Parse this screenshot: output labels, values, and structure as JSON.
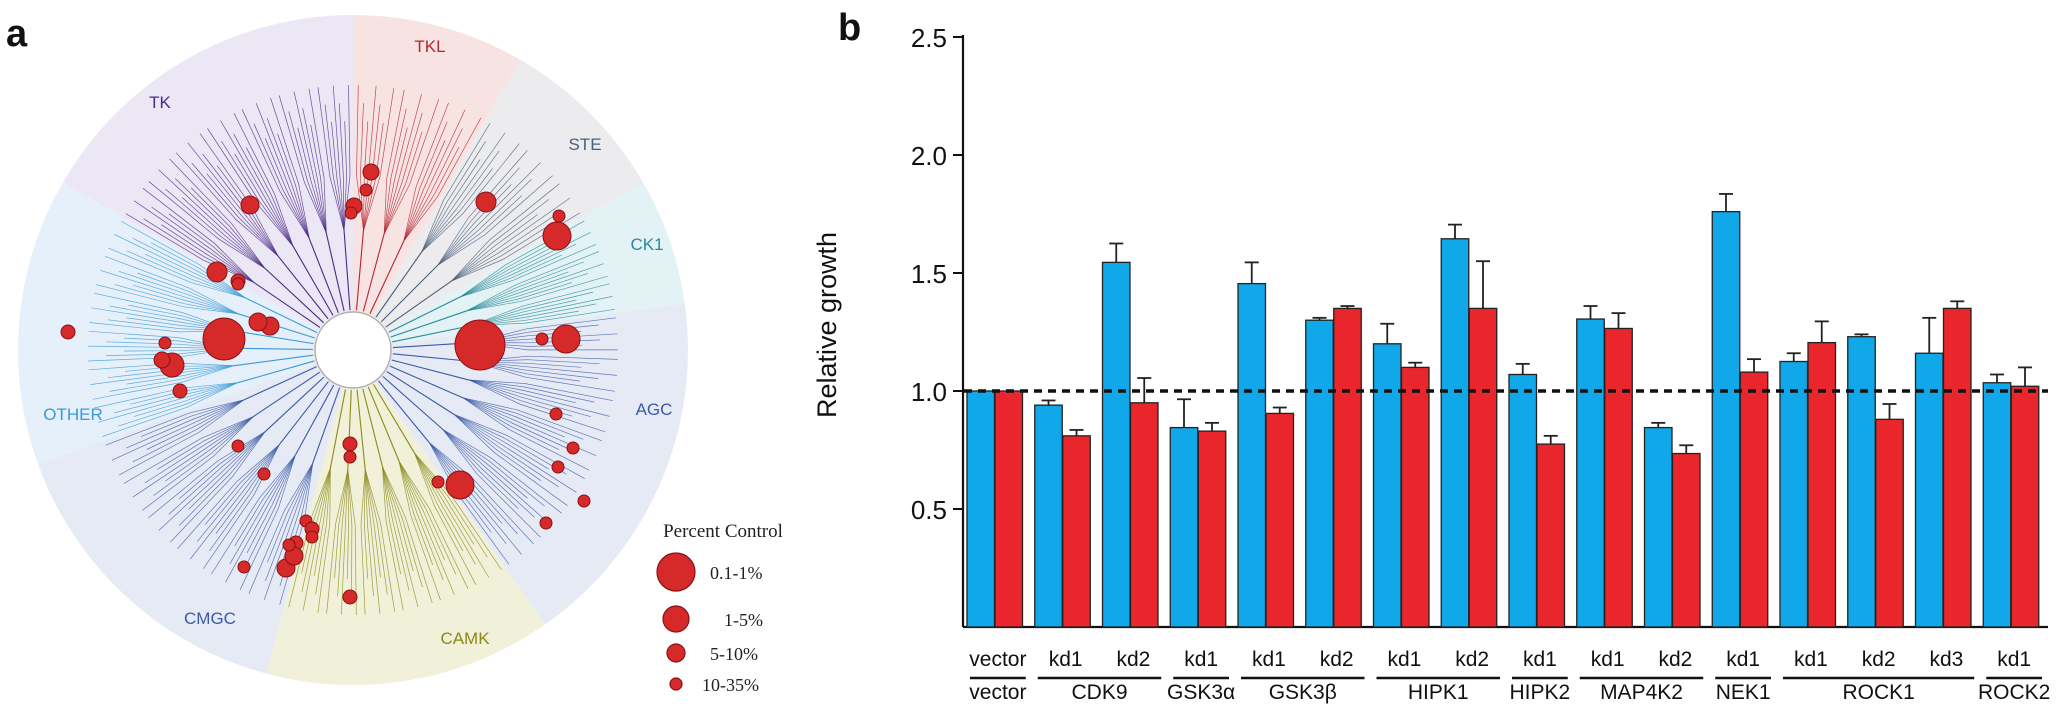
{
  "panel_a": {
    "panel_letter": "a",
    "groups": [
      {
        "name": "TKL",
        "color": "#b2262f"
      },
      {
        "name": "STE",
        "color": "#4a5f7a"
      },
      {
        "name": "CK1",
        "color": "#2a8a98"
      },
      {
        "name": "AGC",
        "color": "#3b5aa8"
      },
      {
        "name": "CAMK",
        "color": "#8a8a1a"
      },
      {
        "name": "CMGC",
        "color": "#3b5aa8"
      },
      {
        "name": "OTHER",
        "color": "#3a9ad8"
      },
      {
        "name": "TK",
        "color": "#4a2a88"
      }
    ],
    "legend": {
      "title": "Percent Control",
      "entries": [
        "0.1-1%",
        "1-5%",
        "5-10%",
        "10-35%"
      ]
    }
  },
  "panel_b": {
    "panel_letter": "b",
    "colors": {
      "series1": "#10a8e8",
      "series2": "#e8262b"
    },
    "chart_data": {
      "type": "bar",
      "ylabel": "Relative growth",
      "xlabel": "",
      "ylim": [
        0,
        2.5
      ],
      "yticks": [
        "0.5",
        "1.0",
        "1.5",
        "2.0",
        "2.5"
      ],
      "reference_line": 1.0,
      "categories": [
        "vector",
        "kd1",
        "kd2",
        "kd1",
        "kd1",
        "kd2",
        "kd1",
        "kd2",
        "kd1",
        "kd1",
        "kd2",
        "kd1",
        "kd1",
        "kd2",
        "kd3",
        "kd1"
      ],
      "groups": [
        {
          "label": "vector",
          "categories": [
            "vector"
          ]
        },
        {
          "label": "CDK9",
          "categories": [
            "kd1",
            "kd2"
          ]
        },
        {
          "label": "GSK3α",
          "categories": [
            "kd1"
          ]
        },
        {
          "label": "GSK3β",
          "categories": [
            "kd1",
            "kd2"
          ]
        },
        {
          "label": "HIPK1",
          "categories": [
            "kd1",
            "kd2"
          ]
        },
        {
          "label": "HIPK2",
          "categories": [
            "kd1"
          ]
        },
        {
          "label": "MAP4K2",
          "categories": [
            "kd1",
            "kd2"
          ]
        },
        {
          "label": "NEK1",
          "categories": [
            "kd1"
          ]
        },
        {
          "label": "ROCK1",
          "categories": [
            "kd1",
            "kd2",
            "kd3"
          ]
        },
        {
          "label": "ROCK2",
          "categories": [
            "kd1"
          ]
        }
      ],
      "series": [
        {
          "values": [
            1.0,
            0.94,
            1.545,
            0.845,
            1.455,
            1.3,
            1.2,
            1.645,
            1.07,
            1.305,
            0.845,
            1.76,
            1.125,
            1.23,
            1.16,
            1.035
          ],
          "errors": [
            0.0,
            0.02,
            0.08,
            0.12,
            0.09,
            0.01,
            0.085,
            0.06,
            0.045,
            0.055,
            0.02,
            0.075,
            0.035,
            0.01,
            0.15,
            0.035
          ]
        },
        {
          "values": [
            1.0,
            0.81,
            0.95,
            0.83,
            0.905,
            1.35,
            1.1,
            1.35,
            0.775,
            1.265,
            0.735,
            1.08,
            1.205,
            0.88,
            1.35,
            1.02
          ],
          "errors": [
            0.0,
            0.025,
            0.105,
            0.035,
            0.025,
            0.01,
            0.02,
            0.2,
            0.035,
            0.065,
            0.035,
            0.055,
            0.09,
            0.065,
            0.03,
            0.08
          ]
        }
      ]
    }
  }
}
